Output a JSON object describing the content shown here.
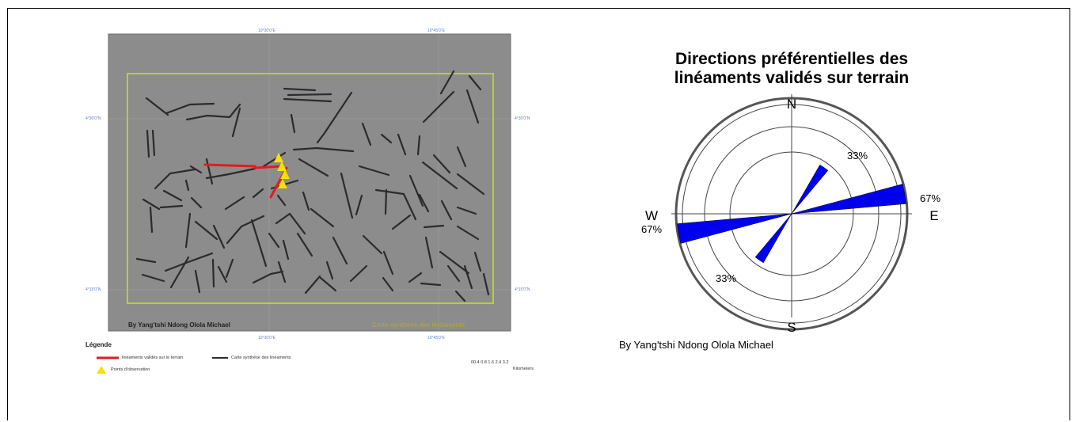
{
  "map": {
    "top_coords": [
      "10°30'0\"E",
      "10°45'0\"E"
    ],
    "bottom_coords": [
      "10°30'0\"E",
      "10°45'0\"E"
    ],
    "left_coords": [
      "4°30'0\"N",
      "4°15'0\"N"
    ],
    "right_coords": [
      "4°30'0\"N",
      "4°15'0\"N"
    ],
    "credit": "By Yang'tshi Ndong Olola Michael",
    "title": "Carte synthèse des linéaments",
    "colors": {
      "background": "#8c8c8c",
      "border": "#b4d22c",
      "lineaments": "#2b2b2b",
      "validated": "#e11d1d",
      "points": "#f6e200"
    }
  },
  "legend": {
    "title": "Légende",
    "validated_label": "linéaments validés sur le terrain",
    "synthesis_label": "Carte synthèse des linéaments",
    "points_label": "Points d'observation",
    "scale_ticks": "00.4 0.8 1.6 2.4 3.2",
    "scale_unit": "Kilometers"
  },
  "rose": {
    "title_line1": "Directions préférentielles des",
    "title_line2": "linéaments validés sur terrain",
    "directions": {
      "n": "N",
      "s": "S",
      "e": "E",
      "w": "W"
    },
    "labels": {
      "ne": "33%",
      "e": "67%",
      "w": "67%",
      "sw": "33%"
    },
    "petals": [
      {
        "azimuth": 35,
        "value": 33
      },
      {
        "azimuth": 80,
        "value": 67
      },
      {
        "azimuth": 215,
        "value": 33
      },
      {
        "azimuth": 260,
        "value": 67
      }
    ],
    "max_value": 67,
    "color": "#0000ee",
    "credit": "By Yang'tshi Ndong Olola Michael"
  }
}
